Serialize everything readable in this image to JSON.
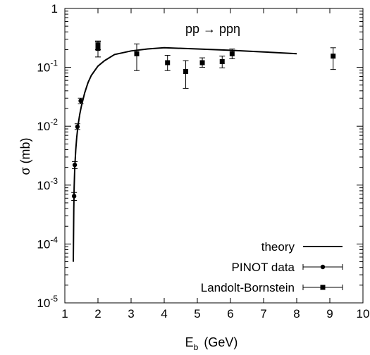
{
  "chart_data": {
    "type": "scatter",
    "title": "pp → ppη",
    "xlabel": {
      "main": "E",
      "sub": "b",
      "rest": "(GeV)"
    },
    "ylabel": "σ (mb)",
    "xlim": [
      1,
      10
    ],
    "ylim": [
      1e-05,
      1
    ],
    "yscale": "log",
    "grid": false,
    "legend_position": "bottom-right",
    "x_ticks": [
      "1",
      "2",
      "3",
      "4",
      "5",
      "6",
      "7",
      "8",
      "9",
      "10"
    ],
    "y_ticks": [
      {
        "base": "1",
        "exp": ""
      },
      {
        "base": "10",
        "exp": "-1"
      },
      {
        "base": "10",
        "exp": "-2"
      },
      {
        "base": "10",
        "exp": "-3"
      },
      {
        "base": "10",
        "exp": "-4"
      },
      {
        "base": "10",
        "exp": "-5"
      }
    ],
    "series": [
      {
        "name": "theory",
        "kind": "line",
        "x": [
          1.255,
          1.27,
          1.28,
          1.3,
          1.33,
          1.36,
          1.4,
          1.45,
          1.5,
          1.6,
          1.7,
          1.8,
          2.0,
          2.2,
          2.5,
          3.0,
          3.5,
          4.0,
          5.0,
          6.0,
          7.0,
          8.0
        ],
        "y": [
          5e-05,
          0.0004,
          0.0009,
          0.002,
          0.004,
          0.0065,
          0.0105,
          0.016,
          0.022,
          0.037,
          0.055,
          0.073,
          0.105,
          0.13,
          0.165,
          0.19,
          0.205,
          0.215,
          0.205,
          0.195,
          0.183,
          0.17
        ]
      },
      {
        "name": "PINOT data",
        "kind": "points",
        "marker": "circle",
        "x": [
          1.28,
          1.3,
          1.38,
          1.48
        ],
        "y": [
          0.00065,
          0.0022,
          0.0098,
          0.027
        ],
        "y_low": [
          0.00055,
          0.0019,
          0.0088,
          0.024
        ],
        "y_high": [
          0.00075,
          0.0025,
          0.011,
          0.03
        ]
      },
      {
        "name": "Landolt-Bornstein",
        "kind": "points",
        "marker": "square",
        "x": [
          2.0,
          2.0,
          3.17,
          4.1,
          4.65,
          5.15,
          5.75,
          6.05,
          9.1
        ],
        "y": [
          0.24,
          0.21,
          0.17,
          0.12,
          0.085,
          0.12,
          0.125,
          0.17,
          0.155
        ],
        "y_low": [
          0.2,
          0.15,
          0.088,
          0.088,
          0.044,
          0.1,
          0.098,
          0.14,
          0.092
        ],
        "y_high": [
          0.28,
          0.27,
          0.25,
          0.16,
          0.13,
          0.145,
          0.155,
          0.205,
          0.215
        ]
      }
    ]
  }
}
